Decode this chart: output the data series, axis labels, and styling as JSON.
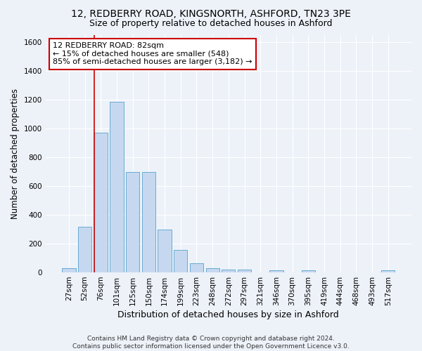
{
  "title_line1": "12, REDBERRY ROAD, KINGSNORTH, ASHFORD, TN23 3PE",
  "title_line2": "Size of property relative to detached houses in Ashford",
  "xlabel": "Distribution of detached houses by size in Ashford",
  "ylabel": "Number of detached properties",
  "footnote": "Contains HM Land Registry data © Crown copyright and database right 2024.\nContains public sector information licensed under the Open Government Licence v3.0.",
  "bar_labels": [
    "27sqm",
    "52sqm",
    "76sqm",
    "101sqm",
    "125sqm",
    "150sqm",
    "174sqm",
    "199sqm",
    "223sqm",
    "248sqm",
    "272sqm",
    "297sqm",
    "321sqm",
    "346sqm",
    "370sqm",
    "395sqm",
    "419sqm",
    "444sqm",
    "468sqm",
    "493sqm",
    "517sqm"
  ],
  "bar_values": [
    30,
    320,
    970,
    1185,
    700,
    700,
    300,
    155,
    65,
    30,
    20,
    20,
    0,
    15,
    0,
    15,
    0,
    0,
    0,
    0,
    15
  ],
  "bar_color": "#c5d8f0",
  "bar_edge_color": "#6aabd2",
  "annotation_box_text": "12 REDBERRY ROAD: 82sqm\n← 15% of detached houses are smaller (548)\n85% of semi-detached houses are larger (3,182) →",
  "annotation_box_color": "#ffffff",
  "annotation_box_edge_color": "#cc0000",
  "vline_x": 2.0,
  "vline_color": "#cc0000",
  "ylim": [
    0,
    1650
  ],
  "yticks": [
    0,
    200,
    400,
    600,
    800,
    1000,
    1200,
    1400,
    1600
  ],
  "background_color": "#edf2f9",
  "grid_color": "#ffffff",
  "title1_fontsize": 10,
  "title2_fontsize": 9,
  "xlabel_fontsize": 9,
  "ylabel_fontsize": 8.5,
  "tick_fontsize": 7.5,
  "annotation_fontsize": 8,
  "footnote_fontsize": 6.5
}
